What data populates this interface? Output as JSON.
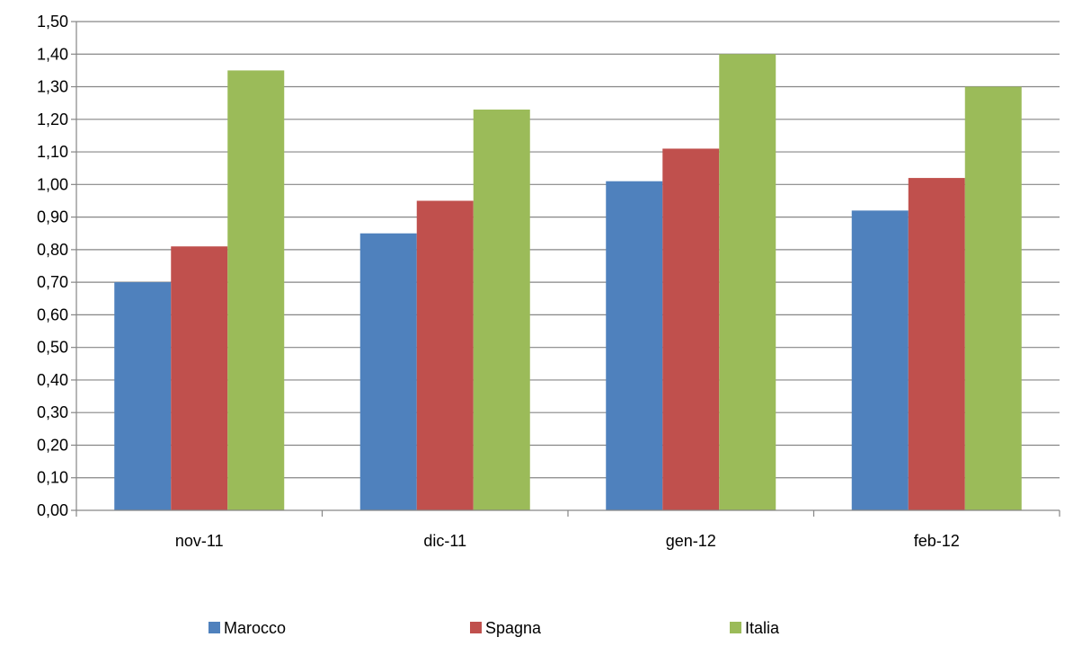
{
  "chart_data": {
    "type": "bar",
    "categories": [
      "nov-11",
      "dic-11",
      "gen-12",
      "feb-12"
    ],
    "series": [
      {
        "name": "Marocco",
        "values": [
          0.7,
          0.85,
          1.01,
          0.92
        ],
        "color": "#4F81BD"
      },
      {
        "name": "Spagna",
        "values": [
          0.81,
          0.95,
          1.11,
          1.02
        ],
        "color": "#C0504D"
      },
      {
        "name": "Italia",
        "values": [
          1.35,
          1.23,
          1.4,
          1.3
        ],
        "color": "#9BBB59"
      }
    ],
    "ylim": [
      0,
      1.5
    ],
    "ytick_labels": [
      "0,00",
      "0,10",
      "0,20",
      "0,30",
      "0,40",
      "0,50",
      "0,60",
      "0,70",
      "0,80",
      "0,90",
      "1,00",
      "1,10",
      "1,20",
      "1,30",
      "1,40",
      "1,50"
    ],
    "grid": true,
    "legend_position": "bottom"
  }
}
